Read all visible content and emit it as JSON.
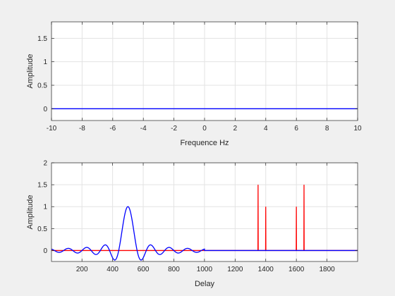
{
  "chart_data": [
    {
      "type": "line",
      "xlabel": "Frequence Hz",
      "ylabel": "Amplitude",
      "xlim": [
        -10,
        10
      ],
      "ylim": [
        -0.25,
        1.85
      ],
      "xticks": [
        -10,
        -8,
        -6,
        -4,
        -2,
        0,
        2,
        4,
        6,
        8,
        10
      ],
      "yticks": [
        0,
        0.5,
        1,
        1.5
      ],
      "grid": true,
      "series": [
        {
          "color": "#0000ff",
          "x": [
            -10,
            10
          ],
          "y": [
            0,
            0
          ]
        }
      ]
    },
    {
      "type": "line",
      "xlabel": "Delay",
      "ylabel": "Amplitude",
      "xlim": [
        1,
        2000
      ],
      "ylim": [
        -0.25,
        2
      ],
      "xticks": [
        200,
        400,
        600,
        800,
        1000,
        1200,
        1400,
        1600,
        1800
      ],
      "yticks": [
        0,
        0.5,
        1,
        1.5,
        2
      ],
      "grid": true,
      "series": [
        {
          "color": "#ff0000",
          "x": [
            1,
            1349,
            1350,
            1351,
            1399,
            1400,
            1401,
            1599,
            1600,
            1601,
            1649,
            1650,
            1651,
            2000
          ],
          "y": [
            0,
            0,
            1.5,
            0,
            0,
            1.0,
            0,
            0,
            1.0,
            0,
            0,
            1.5,
            0,
            0
          ]
        },
        {
          "color": "#0000ff",
          "function": "sinc",
          "center": 500,
          "period": 60,
          "support": [
            1,
            1000
          ],
          "peak": 1,
          "after_support": 0
        }
      ]
    }
  ]
}
